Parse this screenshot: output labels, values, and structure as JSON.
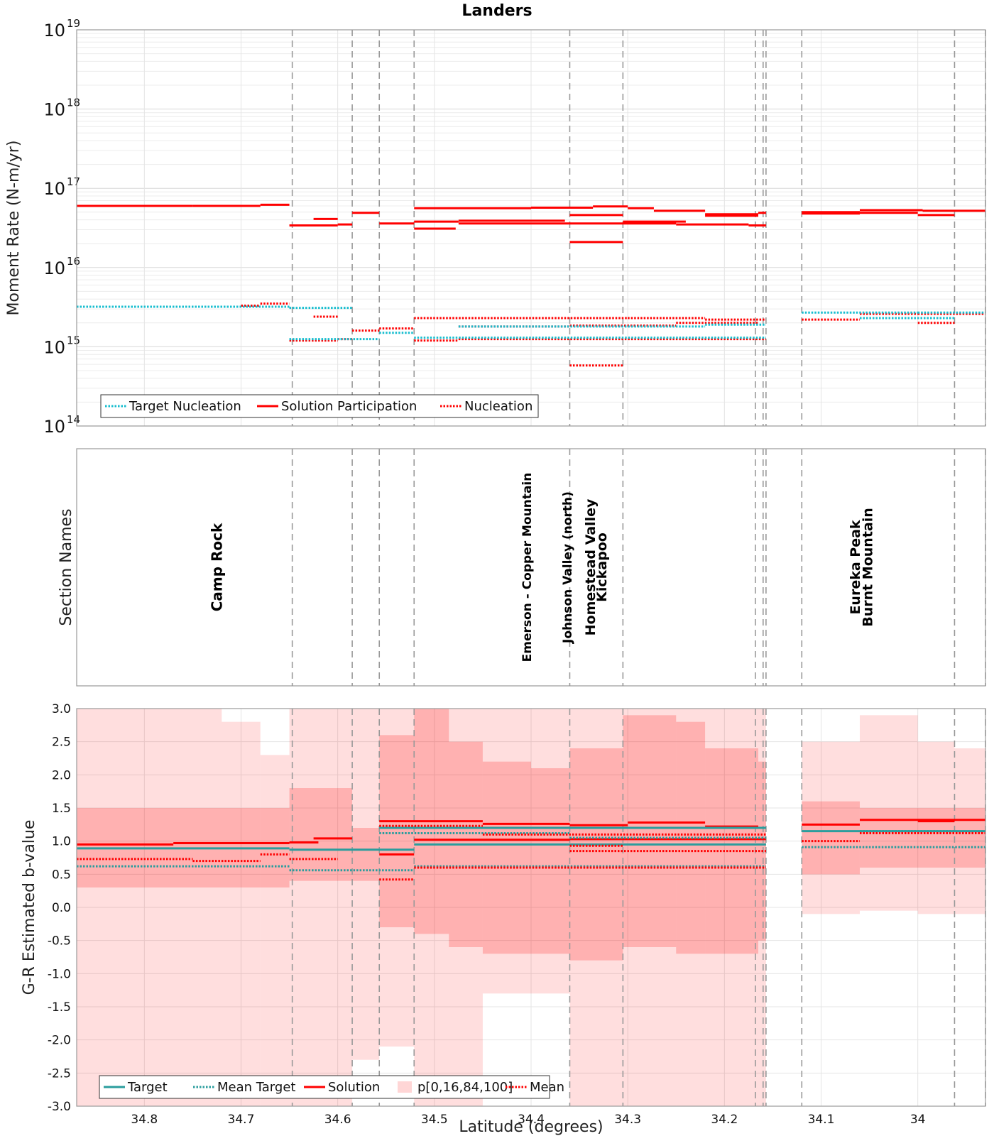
{
  "title": "Landers",
  "chart_data": [
    {
      "id": "moment",
      "type": "line",
      "title": "Landers",
      "ylabel": "Moment Rate (N-m/yr)",
      "yscale": "log",
      "ylim": [
        100000000000000.0,
        1e+19
      ],
      "xlim": [
        34.87,
        33.93
      ],
      "ytick_labels": [
        {
          "base": "10",
          "exp": "14",
          "value": 100000000000000.0
        },
        {
          "base": "10",
          "exp": "15",
          "value": 1000000000000000.0
        },
        {
          "base": "10",
          "exp": "16",
          "value": 1e+16
        },
        {
          "base": "10",
          "exp": "17",
          "value": 1e+17
        },
        {
          "base": "10",
          "exp": "18",
          "value": 1e+18
        },
        {
          "base": "10",
          "exp": "19",
          "value": 1e+19
        }
      ],
      "legend": {
        "location": "bottom-left",
        "entries": [
          {
            "label": "Target Nucleation",
            "color": "#17becf",
            "style": "dotted"
          },
          {
            "label": "Solution Participation",
            "color": "#ff0000",
            "style": "solid"
          },
          {
            "label": "Nucleation",
            "color": "#ff0000",
            "style": "dotted"
          }
        ]
      },
      "series": [
        {
          "name": "Solution Participation",
          "color": "#ff0000",
          "style": "solid",
          "segments": [
            [
              34.87,
              34.75,
              6e+16
            ],
            [
              34.75,
              34.68,
              6e+16
            ],
            [
              34.68,
              34.65,
              6.2e+16
            ],
            [
              34.65,
              34.6,
              3.4e+16
            ],
            [
              34.6,
              34.585,
              3.5e+16
            ],
            [
              34.625,
              34.6,
              4.1e+16
            ],
            [
              34.585,
              34.557,
              4.9e+16
            ],
            [
              34.557,
              34.521,
              3.6e+16
            ],
            [
              34.521,
              34.4,
              5.6e+16
            ],
            [
              34.4,
              34.336,
              5.7e+16
            ],
            [
              34.336,
              34.3,
              5.9e+16
            ],
            [
              34.3,
              34.273,
              5.6e+16
            ],
            [
              34.521,
              34.475,
              3.8e+16
            ],
            [
              34.475,
              34.365,
              3.9e+16
            ],
            [
              34.521,
              34.478,
              3.1e+16
            ],
            [
              34.475,
              34.36,
              3.6e+16
            ],
            [
              34.36,
              34.25,
              3.6e+16
            ],
            [
              34.25,
              34.175,
              3.5e+16
            ],
            [
              34.175,
              34.157,
              3.4e+16
            ],
            [
              34.36,
              34.305,
              4.6e+16
            ],
            [
              34.305,
              34.24,
              3.8e+16
            ],
            [
              34.273,
              34.22,
              5.2e+16
            ],
            [
              34.22,
              34.165,
              4.7e+16
            ],
            [
              34.165,
              34.157,
              4.9e+16
            ],
            [
              34.22,
              34.165,
              4.5e+16
            ],
            [
              34.36,
              34.305,
              2.1e+16
            ],
            [
              34.12,
              34.06,
              4.8e+16
            ],
            [
              34.12,
              34.06,
              5e+16
            ],
            [
              34.06,
              33.995,
              5.3e+16
            ],
            [
              34.06,
              34.0,
              4.9e+16
            ],
            [
              34.0,
              33.962,
              4.6e+16
            ],
            [
              33.995,
              33.93,
              5.2e+16
            ]
          ]
        },
        {
          "name": "Nucleation",
          "color": "#ff0000",
          "style": "dotted",
          "segments": [
            [
              34.87,
              34.7,
              3200000000000000.0
            ],
            [
              34.7,
              34.68,
              3300000000000000.0
            ],
            [
              34.68,
              34.65,
              3500000000000000.0
            ],
            [
              34.625,
              34.6,
              2400000000000000.0
            ],
            [
              34.65,
              34.6,
              1200000000000000.0
            ],
            [
              34.6,
              34.585,
              1250000000000000.0
            ],
            [
              34.585,
              34.557,
              1600000000000000.0
            ],
            [
              34.557,
              34.521,
              1700000000000000.0
            ],
            [
              34.521,
              34.3,
              2300000000000000.0
            ],
            [
              34.3,
              34.22,
              2300000000000000.0
            ],
            [
              34.22,
              34.157,
              2200000000000000.0
            ],
            [
              34.521,
              34.475,
              1200000000000000.0
            ],
            [
              34.475,
              34.157,
              1250000000000000.0
            ],
            [
              34.475,
              34.36,
              1800000000000000.0
            ],
            [
              34.36,
              34.25,
              1850000000000000.0
            ],
            [
              34.25,
              34.165,
              2000000000000000.0
            ],
            [
              34.36,
              34.305,
              580000000000000.0
            ],
            [
              34.12,
              34.06,
              2200000000000000.0
            ],
            [
              34.06,
              34.0,
              2600000000000000.0
            ],
            [
              34.0,
              33.93,
              2600000000000000.0
            ],
            [
              34.0,
              33.962,
              2000000000000000.0
            ]
          ]
        },
        {
          "name": "Target Nucleation",
          "color": "#17becf",
          "style": "dotted",
          "segments": [
            [
              34.87,
              34.65,
              3200000000000000.0
            ],
            [
              34.65,
              34.585,
              3100000000000000.0
            ],
            [
              34.65,
              34.557,
              1250000000000000.0
            ],
            [
              34.557,
              34.521,
              1500000000000000.0
            ],
            [
              34.521,
              34.157,
              1300000000000000.0
            ],
            [
              34.475,
              34.22,
              1800000000000000.0
            ],
            [
              34.22,
              34.157,
              1900000000000000.0
            ],
            [
              34.12,
              34.0,
              2700000000000000.0
            ],
            [
              34.0,
              33.93,
              2700000000000000.0
            ],
            [
              34.06,
              33.962,
              2300000000000000.0
            ]
          ]
        }
      ]
    },
    {
      "id": "sections",
      "type": "table",
      "ylabel": "Section Names",
      "labels": [
        {
          "text": "Camp Rock",
          "lat": 34.72,
          "size": 20
        },
        {
          "text": "Emerson - Copper Mountain",
          "lat": 34.4,
          "size": 17
        },
        {
          "text": "Johnson Valley (north)",
          "lat": 34.358,
          "size": 17
        },
        {
          "text": "Homestead Valley",
          "lat": 34.334,
          "size": 19
        },
        {
          "text": "Kickapoo",
          "lat": 34.322,
          "size": 19
        },
        {
          "text": "Eureka Peak",
          "lat": 34.06,
          "size": 19
        },
        {
          "text": "Burnt Mountain",
          "lat": 34.047,
          "size": 19
        }
      ]
    },
    {
      "id": "bvalue",
      "type": "area",
      "xlabel": "Latitude (degrees)",
      "ylabel": "G-R Estimated b-value",
      "ylim": [
        -3.0,
        3.0
      ],
      "xlim": [
        34.87,
        33.93
      ],
      "xticks": [
        34.8,
        34.7,
        34.6,
        34.5,
        34.4,
        34.3,
        34.2,
        34.1,
        34.0
      ],
      "xtick_labels": [
        "34.8",
        "34.7",
        "34.6",
        "34.5",
        "34.4",
        "34.3",
        "34.2",
        "34.1",
        "34"
      ],
      "yticks": [
        3.0,
        2.5,
        2.0,
        1.5,
        1.0,
        0.5,
        0.0,
        -0.5,
        -1.0,
        -1.5,
        -2.0,
        -2.5,
        -3.0
      ],
      "ytick_labels": [
        "3.0",
        "2.5",
        "2.0",
        "1.5",
        "1.0",
        "0.5",
        "0.0",
        "-0.5",
        "-1.0",
        "-1.5",
        "-2.0",
        "-2.5",
        "-3.0"
      ],
      "legend": {
        "location": "bottom-left",
        "entries": [
          {
            "label": "Target",
            "color": "#2a9d9d",
            "style": "solid"
          },
          {
            "label": "Mean Target",
            "color": "#2a9d9d",
            "style": "dotted"
          },
          {
            "label": "Solution",
            "color": "#ff0000",
            "style": "solid"
          },
          {
            "label": "p[0,16,84,100]",
            "color": "#ffd6d6",
            "style": "patch"
          },
          {
            "label": "Mean",
            "color": "#ff0000",
            "style": "dotted"
          }
        ]
      },
      "bands": [
        [
          34.87,
          34.72,
          -3.0,
          3.0,
          0.3,
          1.5
        ],
        [
          34.72,
          34.68,
          -3.0,
          2.8,
          0.3,
          1.5
        ],
        [
          34.68,
          34.65,
          -3.0,
          2.3,
          0.3,
          1.5
        ],
        [
          34.65,
          34.585,
          -3.0,
          3.0,
          0.4,
          1.8
        ],
        [
          34.585,
          34.557,
          -2.3,
          3.0,
          0.4,
          1.2
        ],
        [
          34.557,
          34.521,
          -2.1,
          3.0,
          -0.3,
          2.6
        ],
        [
          34.521,
          34.485,
          -3.0,
          3.0,
          -0.4,
          3.0
        ],
        [
          34.485,
          34.45,
          -3.0,
          3.0,
          -0.6,
          2.5
        ],
        [
          34.45,
          34.4,
          -1.3,
          3.0,
          -0.7,
          2.2
        ],
        [
          34.4,
          34.36,
          -1.3,
          3.0,
          -0.7,
          2.1
        ],
        [
          34.36,
          34.305,
          -3.0,
          3.0,
          -0.8,
          2.4
        ],
        [
          34.305,
          34.25,
          -3.0,
          3.0,
          -0.6,
          2.9
        ],
        [
          34.25,
          34.22,
          -3.0,
          3.0,
          -0.7,
          2.8
        ],
        [
          34.22,
          34.165,
          -3.0,
          3.0,
          -0.7,
          2.4
        ],
        [
          34.165,
          34.157,
          -3.0,
          3.0,
          -0.5,
          2.2
        ],
        [
          34.12,
          34.06,
          -0.1,
          2.5,
          0.5,
          1.6
        ],
        [
          34.06,
          34.0,
          -0.05,
          2.9,
          0.6,
          1.5
        ],
        [
          34.0,
          33.962,
          -0.1,
          2.5,
          0.6,
          1.5
        ],
        [
          33.962,
          33.93,
          -0.1,
          2.4,
          0.6,
          1.5
        ]
      ],
      "series": [
        {
          "name": "Solution",
          "color": "#ff0000",
          "style": "solid",
          "segments": [
            [
              34.87,
              34.77,
              0.95
            ],
            [
              34.77,
              34.65,
              0.97
            ],
            [
              34.65,
              34.62,
              0.98
            ],
            [
              34.625,
              34.585,
              1.04
            ],
            [
              34.557,
              34.521,
              0.8
            ],
            [
              34.557,
              34.45,
              1.3
            ],
            [
              34.45,
              34.36,
              1.26
            ],
            [
              34.36,
              34.3,
              1.24
            ],
            [
              34.3,
              34.22,
              1.28
            ],
            [
              34.22,
              34.165,
              1.22
            ],
            [
              34.521,
              34.36,
              1.02
            ],
            [
              34.36,
              34.157,
              1.03
            ],
            [
              34.12,
              34.06,
              1.25
            ],
            [
              34.06,
              33.93,
              1.32
            ],
            [
              34.0,
              33.962,
              1.3
            ]
          ]
        },
        {
          "name": "Target",
          "color": "#2a9d9d",
          "style": "solid",
          "segments": [
            [
              34.87,
              34.65,
              0.89
            ],
            [
              34.65,
              34.521,
              0.87
            ],
            [
              34.557,
              34.157,
              1.2
            ],
            [
              34.521,
              34.157,
              0.95
            ],
            [
              34.12,
              33.93,
              1.15
            ]
          ]
        },
        {
          "name": "Mean Target",
          "color": "#2a9d9d",
          "style": "dotted",
          "segments": [
            [
              34.87,
              34.65,
              0.62
            ],
            [
              34.65,
              34.521,
              0.56
            ],
            [
              34.557,
              34.36,
              1.12
            ],
            [
              34.36,
              34.157,
              1.05
            ],
            [
              34.521,
              34.157,
              0.62
            ],
            [
              34.12,
              33.93,
              0.91
            ],
            [
              34.06,
              33.962,
              1.15
            ]
          ]
        },
        {
          "name": "Mean",
          "color": "#ff0000",
          "style": "dotted",
          "segments": [
            [
              34.87,
              34.75,
              0.73
            ],
            [
              34.75,
              34.68,
              0.7
            ],
            [
              34.68,
              34.65,
              0.8
            ],
            [
              34.65,
              34.6,
              0.73
            ],
            [
              34.557,
              34.521,
              0.42
            ],
            [
              34.557,
              34.45,
              1.23
            ],
            [
              34.45,
              34.157,
              1.1
            ],
            [
              34.521,
              34.157,
              0.6
            ],
            [
              34.36,
              34.157,
              0.85
            ],
            [
              34.36,
              34.305,
              0.93
            ],
            [
              34.12,
              34.06,
              1.0
            ],
            [
              34.06,
              33.93,
              1.12
            ]
          ]
        }
      ]
    }
  ],
  "section_boundaries": [
    34.647,
    34.585,
    34.557,
    34.521,
    34.36,
    34.305,
    34.168,
    34.16,
    34.157,
    34.12,
    33.962,
    33.93
  ]
}
